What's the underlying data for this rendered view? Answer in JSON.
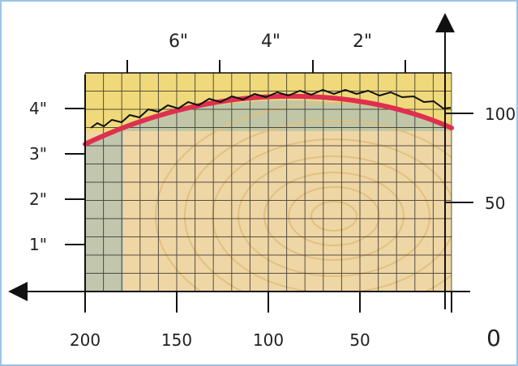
{
  "diagram": {
    "top_axis_labels": [
      "6\"",
      "4\"",
      "2\""
    ],
    "left_axis_labels": [
      "4\"",
      "3\"",
      "2\"",
      "1\""
    ],
    "right_axis_labels": [
      "100",
      "50"
    ],
    "bottom_axis_labels": [
      "200",
      "150",
      "100",
      "50",
      "0"
    ],
    "colors": {
      "frame": "#9dc3e6",
      "wood": "#efd6a5",
      "wood_rings": "#e2c07f",
      "shadow": "#b9c3ae",
      "yellow_grid": "#f0d97a",
      "grid_lines": "#222222",
      "curve": "#de2f4f",
      "blade_edge": "#111111",
      "axis": "#111111"
    },
    "icons": [
      "left-arrow-icon",
      "up-arrow-icon"
    ]
  }
}
